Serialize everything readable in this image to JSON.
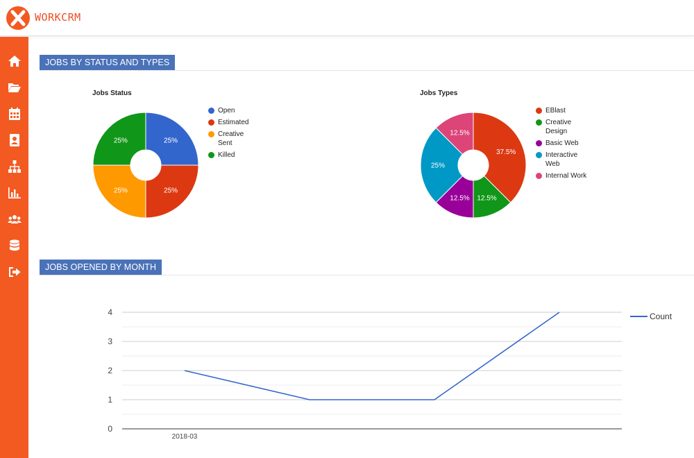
{
  "app": {
    "brand": "WORKCRM"
  },
  "sidebar": {
    "items": [
      {
        "icon": "home-icon",
        "key": "home"
      },
      {
        "icon": "folder-open-icon",
        "key": "projects"
      },
      {
        "icon": "calendar-icon",
        "key": "calendar"
      },
      {
        "icon": "contact-card-icon",
        "key": "contacts"
      },
      {
        "icon": "sitemap-icon",
        "key": "organization"
      },
      {
        "icon": "bar-chart-icon",
        "key": "reports"
      },
      {
        "icon": "users-icon",
        "key": "users"
      },
      {
        "icon": "database-icon",
        "key": "database"
      },
      {
        "icon": "sign-out-icon",
        "key": "logout"
      }
    ]
  },
  "sections": {
    "status_types": "JOBS BY STATUS AND TYPES",
    "by_month": "JOBS OPENED BY MONTH"
  },
  "colors": {
    "accent": "#f25a22",
    "section": "#4a72b8",
    "line": "#3366cc"
  },
  "chart_data": [
    {
      "type": "pie",
      "title": "Jobs Status",
      "donut": true,
      "legend_position": "right",
      "slices": [
        {
          "label": "Open",
          "value": 25,
          "text": "25%",
          "color": "#3366cc"
        },
        {
          "label": "Estimated",
          "value": 25,
          "text": "25%",
          "color": "#dc3912"
        },
        {
          "label": "Creative Sent",
          "value": 25,
          "text": "25%",
          "color": "#ff9900"
        },
        {
          "label": "Killed",
          "value": 25,
          "text": "25%",
          "color": "#109618"
        }
      ]
    },
    {
      "type": "pie",
      "title": "Jobs Types",
      "donut": true,
      "legend_position": "right",
      "slices": [
        {
          "label": "EBlast",
          "value": 37.5,
          "text": "37.5%",
          "color": "#dc3912"
        },
        {
          "label": "Creative Design",
          "value": 12.5,
          "text": "12.5%",
          "color": "#109618"
        },
        {
          "label": "Basic Web",
          "value": 12.5,
          "text": "12.5%",
          "color": "#990099"
        },
        {
          "label": "Interactive Web",
          "value": 25,
          "text": "25%",
          "color": "#0099c6"
        },
        {
          "label": "Internal Work",
          "value": 12.5,
          "text": "12.5%",
          "color": "#dd4477"
        }
      ]
    },
    {
      "type": "line",
      "title": "",
      "x_tick_labels": [
        "2018-03"
      ],
      "series": [
        {
          "name": "Count",
          "values": [
            2,
            1,
            1,
            4
          ],
          "color": "#3366cc"
        }
      ],
      "ylim": [
        0,
        4
      ],
      "y_ticks": [
        0,
        1,
        2,
        3,
        4
      ],
      "grid": true,
      "legend_position": "right"
    }
  ]
}
